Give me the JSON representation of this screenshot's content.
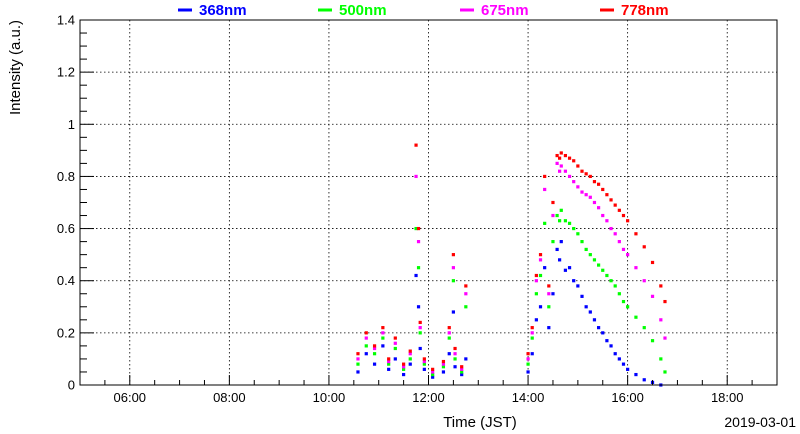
{
  "chart_data": {
    "type": "scatter",
    "xlabel": "Time (JST)",
    "ylabel": "Intensity (a.u.)",
    "date_label": "2019-03-01",
    "xlim": [
      "05:00",
      "19:00"
    ],
    "ylim": [
      0,
      1.4
    ],
    "grid": true,
    "legend_position": "top",
    "x_ticks": [
      "06:00",
      "08:00",
      "10:00",
      "12:00",
      "14:00",
      "16:00",
      "18:00"
    ],
    "y_ticks": [
      "0",
      "0.2",
      "0.4",
      "0.6",
      "0.8",
      "1",
      "1.2",
      "1.4"
    ],
    "series": [
      {
        "name": "368nm",
        "color": "#0000ff",
        "points": [
          [
            "10:35",
            0.05
          ],
          [
            "10:45",
            0.12
          ],
          [
            "10:55",
            0.08
          ],
          [
            "11:05",
            0.15
          ],
          [
            "11:12",
            0.06
          ],
          [
            "11:20",
            0.1
          ],
          [
            "11:30",
            0.04
          ],
          [
            "11:38",
            0.08
          ],
          [
            "11:45",
            0.42
          ],
          [
            "11:48",
            0.3
          ],
          [
            "11:50",
            0.14
          ],
          [
            "11:55",
            0.06
          ],
          [
            "12:05",
            0.03
          ],
          [
            "12:18",
            0.05
          ],
          [
            "12:25",
            0.12
          ],
          [
            "12:30",
            0.28
          ],
          [
            "12:32",
            0.07
          ],
          [
            "12:40",
            0.04
          ],
          [
            "12:45",
            0.1
          ],
          [
            "14:00",
            0.05
          ],
          [
            "14:05",
            0.12
          ],
          [
            "14:10",
            0.25
          ],
          [
            "14:15",
            0.3
          ],
          [
            "14:20",
            0.45
          ],
          [
            "14:25",
            0.22
          ],
          [
            "14:30",
            0.35
          ],
          [
            "14:35",
            0.52
          ],
          [
            "14:38",
            0.48
          ],
          [
            "14:40",
            0.55
          ],
          [
            "14:45",
            0.44
          ],
          [
            "14:50",
            0.45
          ],
          [
            "14:55",
            0.4
          ],
          [
            "15:00",
            0.38
          ],
          [
            "15:05",
            0.34
          ],
          [
            "15:10",
            0.3
          ],
          [
            "15:15",
            0.28
          ],
          [
            "15:20",
            0.25
          ],
          [
            "15:25",
            0.22
          ],
          [
            "15:30",
            0.2
          ],
          [
            "15:35",
            0.17
          ],
          [
            "15:40",
            0.15
          ],
          [
            "15:45",
            0.12
          ],
          [
            "15:50",
            0.1
          ],
          [
            "15:55",
            0.08
          ],
          [
            "16:00",
            0.06
          ],
          [
            "16:10",
            0.04
          ],
          [
            "16:20",
            0.02
          ],
          [
            "16:30",
            0.01
          ],
          [
            "16:40",
            0.0
          ]
        ]
      },
      {
        "name": "500nm",
        "color": "#00ff00",
        "points": [
          [
            "10:35",
            0.08
          ],
          [
            "10:45",
            0.15
          ],
          [
            "10:55",
            0.12
          ],
          [
            "11:05",
            0.18
          ],
          [
            "11:12",
            0.08
          ],
          [
            "11:20",
            0.14
          ],
          [
            "11:30",
            0.06
          ],
          [
            "11:38",
            0.1
          ],
          [
            "11:45",
            0.6
          ],
          [
            "11:48",
            0.45
          ],
          [
            "11:50",
            0.2
          ],
          [
            "11:55",
            0.08
          ],
          [
            "12:05",
            0.04
          ],
          [
            "12:18",
            0.07
          ],
          [
            "12:25",
            0.18
          ],
          [
            "12:30",
            0.4
          ],
          [
            "12:32",
            0.1
          ],
          [
            "12:40",
            0.05
          ],
          [
            "12:45",
            0.3
          ],
          [
            "14:00",
            0.08
          ],
          [
            "14:05",
            0.18
          ],
          [
            "14:10",
            0.35
          ],
          [
            "14:15",
            0.42
          ],
          [
            "14:20",
            0.62
          ],
          [
            "14:25",
            0.3
          ],
          [
            "14:30",
            0.55
          ],
          [
            "14:35",
            0.65
          ],
          [
            "14:38",
            0.63
          ],
          [
            "14:40",
            0.67
          ],
          [
            "14:45",
            0.63
          ],
          [
            "14:50",
            0.62
          ],
          [
            "14:55",
            0.6
          ],
          [
            "15:00",
            0.58
          ],
          [
            "15:05",
            0.55
          ],
          [
            "15:10",
            0.52
          ],
          [
            "15:15",
            0.5
          ],
          [
            "15:20",
            0.48
          ],
          [
            "15:25",
            0.46
          ],
          [
            "15:30",
            0.44
          ],
          [
            "15:35",
            0.42
          ],
          [
            "15:40",
            0.4
          ],
          [
            "15:45",
            0.38
          ],
          [
            "15:50",
            0.35
          ],
          [
            "15:55",
            0.32
          ],
          [
            "16:00",
            0.3
          ],
          [
            "16:10",
            0.26
          ],
          [
            "16:20",
            0.22
          ],
          [
            "16:30",
            0.17
          ],
          [
            "16:40",
            0.1
          ],
          [
            "16:45",
            0.05
          ]
        ]
      },
      {
        "name": "675nm",
        "color": "#ff00ff",
        "points": [
          [
            "10:35",
            0.1
          ],
          [
            "10:45",
            0.18
          ],
          [
            "10:55",
            0.14
          ],
          [
            "11:05",
            0.2
          ],
          [
            "11:12",
            0.09
          ],
          [
            "11:20",
            0.16
          ],
          [
            "11:30",
            0.07
          ],
          [
            "11:38",
            0.12
          ],
          [
            "11:45",
            0.8
          ],
          [
            "11:48",
            0.55
          ],
          [
            "11:50",
            0.22
          ],
          [
            "11:55",
            0.09
          ],
          [
            "12:05",
            0.05
          ],
          [
            "12:18",
            0.08
          ],
          [
            "12:25",
            0.2
          ],
          [
            "12:30",
            0.45
          ],
          [
            "12:32",
            0.12
          ],
          [
            "12:40",
            0.06
          ],
          [
            "12:45",
            0.35
          ],
          [
            "14:00",
            0.1
          ],
          [
            "14:05",
            0.2
          ],
          [
            "14:10",
            0.4
          ],
          [
            "14:15",
            0.48
          ],
          [
            "14:20",
            0.75
          ],
          [
            "14:25",
            0.35
          ],
          [
            "14:30",
            0.65
          ],
          [
            "14:35",
            0.85
          ],
          [
            "14:38",
            0.82
          ],
          [
            "14:40",
            0.84
          ],
          [
            "14:45",
            0.82
          ],
          [
            "14:50",
            0.8
          ],
          [
            "14:55",
            0.78
          ],
          [
            "15:00",
            0.76
          ],
          [
            "15:05",
            0.74
          ],
          [
            "15:10",
            0.73
          ],
          [
            "15:15",
            0.72
          ],
          [
            "15:20",
            0.7
          ],
          [
            "15:25",
            0.68
          ],
          [
            "15:30",
            0.65
          ],
          [
            "15:35",
            0.63
          ],
          [
            "15:40",
            0.6
          ],
          [
            "15:45",
            0.58
          ],
          [
            "15:50",
            0.55
          ],
          [
            "15:55",
            0.52
          ],
          [
            "16:00",
            0.5
          ],
          [
            "16:10",
            0.45
          ],
          [
            "16:20",
            0.4
          ],
          [
            "16:30",
            0.34
          ],
          [
            "16:40",
            0.25
          ],
          [
            "16:45",
            0.18
          ]
        ]
      },
      {
        "name": "778nm",
        "color": "#ff0000",
        "points": [
          [
            "10:35",
            0.12
          ],
          [
            "10:45",
            0.2
          ],
          [
            "10:55",
            0.15
          ],
          [
            "11:05",
            0.22
          ],
          [
            "11:12",
            0.1
          ],
          [
            "11:20",
            0.18
          ],
          [
            "11:30",
            0.08
          ],
          [
            "11:38",
            0.13
          ],
          [
            "11:45",
            0.92
          ],
          [
            "11:48",
            0.6
          ],
          [
            "11:50",
            0.24
          ],
          [
            "11:55",
            0.1
          ],
          [
            "12:05",
            0.06
          ],
          [
            "12:18",
            0.09
          ],
          [
            "12:25",
            0.22
          ],
          [
            "12:30",
            0.5
          ],
          [
            "12:32",
            0.14
          ],
          [
            "12:40",
            0.07
          ],
          [
            "12:45",
            0.38
          ],
          [
            "14:00",
            0.12
          ],
          [
            "14:05",
            0.22
          ],
          [
            "14:10",
            0.42
          ],
          [
            "14:15",
            0.5
          ],
          [
            "14:20",
            0.8
          ],
          [
            "14:25",
            0.38
          ],
          [
            "14:30",
            0.7
          ],
          [
            "14:35",
            0.88
          ],
          [
            "14:38",
            0.87
          ],
          [
            "14:40",
            0.89
          ],
          [
            "14:45",
            0.88
          ],
          [
            "14:50",
            0.87
          ],
          [
            "14:55",
            0.86
          ],
          [
            "15:00",
            0.84
          ],
          [
            "15:05",
            0.82
          ],
          [
            "15:10",
            0.81
          ],
          [
            "15:15",
            0.8
          ],
          [
            "15:20",
            0.78
          ],
          [
            "15:25",
            0.77
          ],
          [
            "15:30",
            0.75
          ],
          [
            "15:35",
            0.73
          ],
          [
            "15:40",
            0.71
          ],
          [
            "15:45",
            0.69
          ],
          [
            "15:50",
            0.67
          ],
          [
            "15:55",
            0.65
          ],
          [
            "16:00",
            0.63
          ],
          [
            "16:10",
            0.58
          ],
          [
            "16:20",
            0.53
          ],
          [
            "16:30",
            0.47
          ],
          [
            "16:40",
            0.38
          ],
          [
            "16:45",
            0.32
          ]
        ]
      }
    ]
  }
}
